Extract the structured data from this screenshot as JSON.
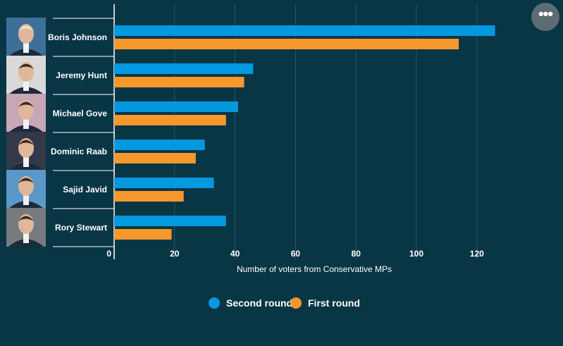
{
  "menu": {
    "icon": "more-horizontal-icon",
    "label": "•••"
  },
  "chart_data": {
    "type": "bar",
    "orientation": "horizontal",
    "categories": [
      "Boris Johnson",
      "Jeremy Hunt",
      "Michael Gove",
      "Dominic Raab",
      "Sajid Javid",
      "Rory Stewart"
    ],
    "series": [
      {
        "name": "Second round",
        "color": "#0399df",
        "values": [
          126,
          46,
          41,
          30,
          33,
          37
        ]
      },
      {
        "name": "First round",
        "color": "#f7982d",
        "values": [
          114,
          43,
          37,
          27,
          23,
          19
        ]
      }
    ],
    "xlabel": "Number of voters from Conservative MPs",
    "xlim": [
      0,
      132
    ],
    "xticks": [
      0,
      20,
      40,
      60,
      80,
      100,
      120
    ],
    "grid": true,
    "legend": "bottom-center",
    "category_images": [
      "portrait-boris-johnson",
      "portrait-jeremy-hunt",
      "portrait-michael-gove",
      "portrait-dominic-raab",
      "portrait-sajid-javid",
      "portrait-rory-stewart"
    ],
    "colors": {
      "background": "#083645",
      "grid": "#2c5563",
      "axis": "#ffffff",
      "text": "#ffffff"
    }
  }
}
